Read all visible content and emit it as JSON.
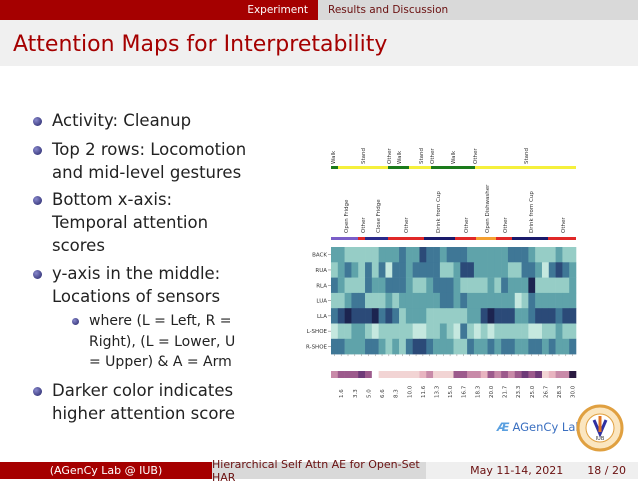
{
  "nav": {
    "sections": [
      "Experiment",
      "Results and Discussion"
    ]
  },
  "title": "Attention Maps for Interpretability",
  "bullets": [
    {
      "lines": [
        "Activity: Cleanup"
      ]
    },
    {
      "lines": [
        "Top 2 rows: Locomotion",
        "and mid-level gestures"
      ]
    },
    {
      "lines": [
        "Bottom x-axis:",
        "Temporal attention",
        "scores"
      ]
    },
    {
      "lines": [
        "y-axis in the middle:",
        "Locations of sensors"
      ],
      "sub": [
        {
          "lines": [
            "where (L = Left, R =",
            "Right), (L = Lower, U",
            "= Upper) & A = Arm"
          ]
        }
      ]
    },
    {
      "lines": [
        "Darker color indicates",
        "higher attention score"
      ]
    }
  ],
  "chart_data": {
    "type": "heatmap",
    "locomotion": {
      "labels": [
        "Walk",
        "Stand",
        "Other",
        "Walk",
        "Stand",
        "Other",
        "Walk",
        "Other",
        "Stand"
      ],
      "segments": [
        {
          "label": "Walk",
          "color": "#1a7a1a"
        },
        {
          "label": "Stand",
          "color": "#f5f03c"
        },
        {
          "label": "Walk",
          "color": "#1a7a1a"
        },
        {
          "label": "Stand",
          "color": "#f5f03c"
        },
        {
          "label": "Walk",
          "color": "#1a7a1a"
        },
        {
          "label": "Stand",
          "color": "#f5f03c"
        }
      ]
    },
    "gestures": {
      "labels": [
        "Open Fridge",
        "Other",
        "Close Fridge",
        "Other",
        "Drink from Cup",
        "Other",
        "Open Dishwasher",
        "Other",
        "Drink from Cup",
        "Other"
      ],
      "segments": [
        {
          "label": "Open Fridge",
          "color": "#7a5ec8"
        },
        {
          "label": "Other",
          "color": "#e02828"
        },
        {
          "label": "Close Fridge",
          "color": "#2a2a8a"
        },
        {
          "label": "Other",
          "color": "#e02828"
        },
        {
          "label": "Drink from Cup",
          "color": "#1a1a6a"
        },
        {
          "label": "Other",
          "color": "#e02828"
        },
        {
          "label": "Open Dishwasher",
          "color": "#f5a030"
        },
        {
          "label": "Other",
          "color": "#e02828"
        },
        {
          "label": "Drink from Cup",
          "color": "#1a1a6a"
        },
        {
          "label": "Other",
          "color": "#e02828"
        }
      ]
    },
    "rows": [
      "BACK",
      "RUA",
      "RLA",
      "LUA",
      "LLA",
      "L-SHOE",
      "R-SHOE"
    ],
    "values": [
      [
        3,
        3,
        2,
        2,
        2,
        2,
        2,
        3,
        3,
        3,
        4,
        3,
        3,
        5,
        4,
        4,
        3,
        4,
        4,
        4,
        3,
        3,
        3,
        3,
        3,
        3,
        4,
        4,
        4,
        3,
        2,
        2,
        2,
        3,
        2,
        2
      ],
      [
        2,
        3,
        4,
        3,
        2,
        4,
        2,
        4,
        1,
        4,
        4,
        3,
        4,
        4,
        4,
        4,
        2,
        2,
        3,
        5,
        5,
        3,
        3,
        3,
        3,
        3,
        2,
        2,
        4,
        4,
        3,
        1,
        4,
        5,
        4,
        3
      ],
      [
        4,
        3,
        2,
        2,
        2,
        4,
        3,
        3,
        4,
        4,
        4,
        3,
        2,
        2,
        3,
        4,
        4,
        4,
        3,
        2,
        2,
        2,
        2,
        3,
        2,
        4,
        3,
        3,
        3,
        6,
        2,
        2,
        2,
        2,
        2,
        3
      ],
      [
        2,
        2,
        3,
        4,
        4,
        2,
        2,
        2,
        3,
        2,
        3,
        3,
        3,
        3,
        3,
        3,
        4,
        4,
        3,
        4,
        3,
        3,
        3,
        3,
        3,
        3,
        3,
        1,
        2,
        4,
        3,
        3,
        3,
        3,
        3,
        3
      ],
      [
        4,
        5,
        6,
        5,
        5,
        5,
        6,
        4,
        5,
        4,
        2,
        3,
        3,
        3,
        2,
        2,
        2,
        2,
        2,
        2,
        3,
        3,
        5,
        6,
        5,
        5,
        5,
        3,
        3,
        4,
        5,
        5,
        5,
        4,
        5,
        5
      ],
      [
        1,
        2,
        2,
        3,
        3,
        2,
        1,
        2,
        2,
        2,
        2,
        2,
        1,
        1,
        2,
        2,
        3,
        2,
        1,
        4,
        2,
        1,
        2,
        1,
        2,
        2,
        2,
        2,
        2,
        1,
        1,
        2,
        2,
        3,
        2,
        2
      ],
      [
        4,
        4,
        3,
        3,
        3,
        4,
        4,
        3,
        2,
        3,
        2,
        4,
        5,
        5,
        4,
        3,
        3,
        3,
        2,
        2,
        4,
        3,
        3,
        4,
        3,
        4,
        4,
        3,
        3,
        4,
        4,
        3,
        4,
        3,
        3,
        4
      ]
    ],
    "temporal_scores": [
      3,
      4,
      4,
      4,
      5,
      4,
      0,
      1,
      1,
      1,
      1,
      1,
      1,
      2,
      3,
      1,
      1,
      1,
      4,
      4,
      3,
      3,
      2,
      4,
      3,
      4,
      3,
      4,
      5,
      4,
      5,
      1,
      2,
      3,
      3,
      6
    ],
    "temporal_ticks": [
      "1.6",
      "3.3",
      "5.0",
      "6.6",
      "8.3",
      "10.0",
      "11.6",
      "13.3",
      "15.0",
      "16.7",
      "18.3",
      "20.0",
      "21.7",
      "23.3",
      "25.0",
      "26.7",
      "28.3",
      "30.0"
    ],
    "heat_palette": [
      "#d6f0e8",
      "#c5e8df",
      "#96cdc6",
      "#5fa3aa",
      "#3f7796",
      "#2b4a78",
      "#1c2450"
    ],
    "temporal_palette": [
      "#ffffff",
      "#f2d4d4",
      "#e8b4c0",
      "#c88aa8",
      "#9c5a8c",
      "#6e3a78",
      "#2a1a40"
    ]
  },
  "logos": {
    "lab": "AGenCy Lab",
    "university": "IUB"
  },
  "footer": {
    "author": "(AGenCy Lab @ IUB)",
    "short_title": "Hierarchical Self Attn AE for Open-Set HAR",
    "date": "May 11-14, 2021",
    "page": "18 / 20"
  }
}
